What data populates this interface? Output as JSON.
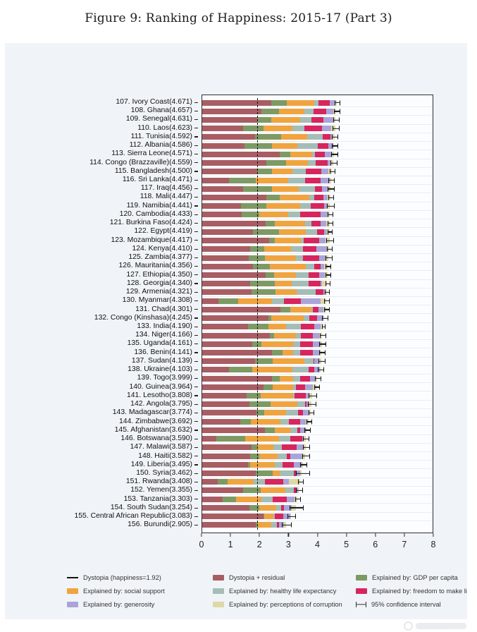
{
  "figure_title": "Figure 9: Ranking of Happiness: 2015-17 (Part 3)",
  "chart_data": {
    "type": "bar",
    "orientation": "horizontal",
    "stacked": true,
    "title": "Figure 9: Ranking of Happiness: 2015-17 (Part 3)",
    "xlabel": "",
    "ylabel": "",
    "xlim": [
      0,
      8
    ],
    "x_ticks": [
      0,
      1,
      2,
      3,
      4,
      5,
      6,
      7,
      8
    ],
    "grid": "faint horizontal row lines",
    "dystopia_line": 1.92,
    "segment_keys": [
      "dystopia_residual",
      "gdp_per_capita",
      "social_support",
      "healthy_life_expectancy",
      "freedom",
      "generosity",
      "corruption"
    ],
    "segment_colors": {
      "dystopia_residual": "#a85d63",
      "gdp_per_capita": "#7e9a64",
      "social_support": "#f0a43f",
      "healthy_life_expectancy": "#a4bdb7",
      "freedom": "#d8255e",
      "generosity": "#a9a5d9",
      "corruption": "#ded8a6"
    },
    "axis_color": "#2f2f2f",
    "countries": [
      {
        "rank": 107,
        "name": "Ivory Coast",
        "score": 4.671,
        "label": "107. Ivory Coast(4.671)",
        "segments": [
          2.39,
          0.55,
          0.95,
          0.15,
          0.38,
          0.17,
          0.081
        ],
        "ci": 0.08
      },
      {
        "rank": 108,
        "name": "Ghana",
        "score": 4.657,
        "label": "108. Ghana(4.657)",
        "segments": [
          2.06,
          0.6,
          0.9,
          0.3,
          0.45,
          0.25,
          0.097
        ],
        "ci": 0.09
      },
      {
        "rank": 109,
        "name": "Senegal",
        "score": 4.631,
        "label": "109. Senegal(4.631)",
        "segments": [
          1.92,
          0.48,
          1.0,
          0.4,
          0.42,
          0.32,
          0.091
        ],
        "ci": 0.08
      },
      {
        "rank": 110,
        "name": "Laos",
        "score": 4.623,
        "label": "110. Laos(4.623)",
        "segments": [
          1.41,
          0.72,
          1.0,
          0.41,
          0.62,
          0.32,
          0.143
        ],
        "ci": 0.09
      },
      {
        "rank": 111,
        "name": "Tunisia",
        "score": 4.592,
        "label": "111. Tunisia(4.592)",
        "segments": [
          1.83,
          0.9,
          0.91,
          0.55,
          0.26,
          0.06,
          0.082
        ],
        "ci": 0.08
      },
      {
        "rank": 112,
        "name": "Albania",
        "score": 4.586,
        "label": "112. Albania(4.586)",
        "segments": [
          1.48,
          0.95,
          0.88,
          0.7,
          0.38,
          0.17,
          0.026
        ],
        "ci": 0.08
      },
      {
        "rank": 113,
        "name": "Sierra Leone",
        "score": 4.571,
        "label": "113. Sierra Leone(4.571)",
        "segments": [
          2.68,
          0.37,
          0.76,
          0.1,
          0.35,
          0.24,
          0.071
        ],
        "ci": 0.09
      },
      {
        "rank": 114,
        "name": "Congo (Brazzaville)",
        "score": 4.559,
        "label": "114. Congo (Brazzaville)(4.559)",
        "segments": [
          2.22,
          0.68,
          0.77,
          0.26,
          0.43,
          0.12,
          0.079
        ],
        "ci": 0.1
      },
      {
        "rank": 115,
        "name": "Bangladesh",
        "score": 4.5,
        "label": "115. Bangladesh(4.500)",
        "segments": [
          1.9,
          0.53,
          0.71,
          0.46,
          0.54,
          0.24,
          0.12
        ],
        "ci": 0.08
      },
      {
        "rank": 116,
        "name": "Sri Lanka",
        "score": 4.471,
        "label": "116. Sri Lanka(4.471)",
        "segments": [
          0.94,
          0.92,
          1.12,
          0.6,
          0.53,
          0.31,
          0.051
        ],
        "ci": 0.08
      },
      {
        "rank": 117,
        "name": "Iraq",
        "score": 4.456,
        "label": "117. Iraq(4.456)",
        "segments": [
          1.42,
          1.01,
          0.92,
          0.57,
          0.24,
          0.2,
          0.096
        ],
        "ci": 0.1
      },
      {
        "rank": 118,
        "name": "Mali",
        "score": 4.447,
        "label": "118. Mali(4.447)",
        "segments": [
          2.23,
          0.45,
          1.04,
          0.16,
          0.33,
          0.15,
          0.087
        ],
        "ci": 0.08
      },
      {
        "rank": 119,
        "name": "Namibia",
        "score": 4.441,
        "label": "119. Namibia(4.441)",
        "segments": [
          1.35,
          0.87,
          1.19,
          0.35,
          0.48,
          0.1,
          0.101
        ],
        "ci": 0.1
      },
      {
        "rank": 120,
        "name": "Cambodia",
        "score": 4.433,
        "label": "120. Cambodia(4.433)",
        "segments": [
          1.37,
          0.6,
          1.01,
          0.42,
          0.7,
          0.26,
          0.073
        ],
        "ci": 0.08
      },
      {
        "rank": 121,
        "name": "Burkina Faso",
        "score": 4.424,
        "label": "121. Burkina Faso(4.424)",
        "segments": [
          2.2,
          0.31,
          1.06,
          0.22,
          0.33,
          0.18,
          0.124
        ],
        "ci": 0.08
      },
      {
        "rank": 122,
        "name": "Egypt",
        "score": 4.419,
        "label": "122. Egypt(4.419)",
        "segments": [
          1.76,
          0.9,
          0.94,
          0.4,
          0.24,
          0.09,
          0.089
        ],
        "ci": 0.07
      },
      {
        "rank": 123,
        "name": "Mozambique",
        "score": 4.417,
        "label": "123. Mozambique(4.417)",
        "segments": [
          2.33,
          0.2,
          0.9,
          0.1,
          0.53,
          0.22,
          0.137
        ],
        "ci": 0.11
      },
      {
        "rank": 124,
        "name": "Kenya",
        "score": 4.41,
        "label": "124. Kenya(4.410)",
        "segments": [
          1.67,
          0.49,
          0.92,
          0.42,
          0.47,
          0.37,
          0.07
        ],
        "ci": 0.07
      },
      {
        "rank": 125,
        "name": "Zambia",
        "score": 4.377,
        "label": "125. Zambia(4.377)",
        "segments": [
          1.62,
          0.56,
          1.07,
          0.26,
          0.54,
          0.23,
          0.097
        ],
        "ci": 0.1
      },
      {
        "rank": 126,
        "name": "Mauritania",
        "score": 4.356,
        "label": "126. Mauritania(4.356)",
        "segments": [
          1.77,
          0.57,
          1.25,
          0.29,
          0.23,
          0.13,
          0.116
        ],
        "ci": 0.08
      },
      {
        "rank": 127,
        "name": "Ethiopia",
        "score": 4.35,
        "label": "127. Ethiopia(4.350)",
        "segments": [
          2.19,
          0.31,
          0.75,
          0.44,
          0.36,
          0.2,
          0.1
        ],
        "ci": 0.08
      },
      {
        "rank": 128,
        "name": "Georgia",
        "score": 4.34,
        "label": "128. Georgia(4.340)",
        "segments": [
          1.66,
          0.85,
          0.59,
          0.6,
          0.42,
          0.04,
          0.18
        ],
        "ci": 0.07
      },
      {
        "rank": 129,
        "name": "Armenia",
        "score": 4.321,
        "label": "129. Armenia(4.321)",
        "segments": [
          1.72,
          0.82,
          0.75,
          0.66,
          0.26,
          0.08,
          0.031
        ],
        "ci": 0.07
      },
      {
        "rank": 130,
        "name": "Myanmar",
        "score": 4.308,
        "label": "130. Myanmar(4.308)",
        "segments": [
          0.57,
          0.68,
          1.17,
          0.43,
          0.58,
          0.69,
          0.188
        ],
        "ci": 0.07
      },
      {
        "rank": 131,
        "name": "Chad",
        "score": 4.301,
        "label": "131. Chad(4.301)",
        "segments": [
          2.71,
          0.36,
          0.73,
          0.05,
          0.19,
          0.18,
          0.081
        ],
        "ci": 0.08
      },
      {
        "rank": 132,
        "name": "Congo (Kinshasa)",
        "score": 4.245,
        "label": "132. Congo (Kinshasa)(4.245)",
        "segments": [
          2.3,
          0.09,
          1.13,
          0.19,
          0.27,
          0.22,
          0.045
        ],
        "ci": 0.09
      },
      {
        "rank": 133,
        "name": "India",
        "score": 4.19,
        "label": "133. India(4.190)",
        "segments": [
          1.59,
          0.72,
          0.6,
          0.51,
          0.46,
          0.22,
          0.09
        ],
        "ci": 0.04
      },
      {
        "rank": 134,
        "name": "Niger",
        "score": 4.166,
        "label": "134. Niger(4.166)",
        "segments": [
          2.35,
          0.14,
          0.77,
          0.16,
          0.43,
          0.2,
          0.116
        ],
        "ci": 0.08
      },
      {
        "rank": 135,
        "name": "Uganda",
        "score": 4.161,
        "label": "135. Uganda(4.161)",
        "segments": [
          1.74,
          0.32,
          1.09,
          0.24,
          0.45,
          0.26,
          0.061
        ],
        "ci": 0.09
      },
      {
        "rank": 136,
        "name": "Benin",
        "score": 4.141,
        "label": "136. Benin(4.141)",
        "segments": [
          2.41,
          0.38,
          0.37,
          0.25,
          0.44,
          0.21,
          0.081
        ],
        "ci": 0.08
      },
      {
        "rank": 137,
        "name": "Sudan",
        "score": 4.139,
        "label": "137. Sudan(4.139)",
        "segments": [
          1.84,
          0.61,
          1.1,
          0.31,
          0.04,
          0.15,
          0.089
        ],
        "ci": 0.1
      },
      {
        "rank": 138,
        "name": "Ukraine",
        "score": 4.103,
        "label": "138. Ukraine(4.103)",
        "segments": [
          0.94,
          0.79,
          1.41,
          0.56,
          0.18,
          0.21,
          0.013
        ],
        "ci": 0.08
      },
      {
        "rank": 139,
        "name": "Togo",
        "score": 3.999,
        "label": "139. Togo(3.999)",
        "segments": [
          2.42,
          0.26,
          0.47,
          0.25,
          0.34,
          0.17,
          0.089
        ],
        "ci": 0.08
      },
      {
        "rank": 140,
        "name": "Guinea",
        "score": 3.964,
        "label": "140. Guinea(3.964)",
        "segments": [
          2.13,
          0.31,
          0.72,
          0.1,
          0.31,
          0.28,
          0.114
        ],
        "ci": 0.08
      },
      {
        "rank": 141,
        "name": "Lesotho",
        "score": 3.808,
        "label": "141. Lesotho(3.808)",
        "segments": [
          1.55,
          0.47,
          1.13,
          0.05,
          0.39,
          0.12,
          0.098
        ],
        "ci": 0.12
      },
      {
        "rank": 142,
        "name": "Angola",
        "score": 3.795,
        "label": "142. Angola(3.795)",
        "segments": [
          1.65,
          0.73,
          0.92,
          0.27,
          0.06,
          0.1,
          0.065
        ],
        "ci": 0.12
      },
      {
        "rank": 143,
        "name": "Madagascar",
        "score": 3.774,
        "label": "143. Madagascar(3.774)",
        "segments": [
          1.89,
          0.26,
          0.77,
          0.4,
          0.19,
          0.19,
          0.074
        ],
        "ci": 0.07
      },
      {
        "rank": 144,
        "name": "Zimbabwe",
        "score": 3.692,
        "label": "144. Zimbabwe(3.692)",
        "segments": [
          1.32,
          0.36,
          1.04,
          0.28,
          0.41,
          0.19,
          0.092
        ],
        "ci": 0.08
      },
      {
        "rank": 145,
        "name": "Afghanistan",
        "score": 3.632,
        "label": "145. Afghanistan(3.632)",
        "segments": [
          2.18,
          0.33,
          0.54,
          0.26,
          0.09,
          0.19,
          0.042
        ],
        "ci": 0.08
      },
      {
        "rank": 146,
        "name": "Botswana",
        "score": 3.59,
        "label": "146. Botswana(3.590)",
        "segments": [
          0.5,
          1.0,
          1.16,
          0.4,
          0.41,
          0.04,
          0.08
        ],
        "ci": 0.08
      },
      {
        "rank": 147,
        "name": "Malawi",
        "score": 3.587,
        "label": "147. Malawi(3.587)",
        "segments": [
          1.71,
          0.19,
          0.56,
          0.3,
          0.53,
          0.22,
          0.077
        ],
        "ci": 0.1
      },
      {
        "rank": 148,
        "name": "Haiti",
        "score": 3.582,
        "label": "148. Haiti(3.582)",
        "segments": [
          1.66,
          0.32,
          0.64,
          0.31,
          0.12,
          0.42,
          0.112
        ],
        "ci": 0.12
      },
      {
        "rank": 149,
        "name": "Liberia",
        "score": 3.495,
        "label": "149. Liberia(3.495)",
        "segments": [
          1.59,
          0.08,
          0.86,
          0.27,
          0.37,
          0.28,
          0.045
        ],
        "ci": 0.1
      },
      {
        "rank": 150,
        "name": "Syria",
        "score": 3.462,
        "label": "150. Syria(3.462)",
        "segments": [
          1.85,
          0.59,
          0.25,
          0.5,
          0.06,
          0.15,
          0.062
        ],
        "ci": 0.22
      },
      {
        "rank": 151,
        "name": "Rwanda",
        "score": 3.408,
        "label": "151. Rwanda(3.408)",
        "segments": [
          0.55,
          0.33,
          0.9,
          0.4,
          0.64,
          0.2,
          0.388
        ],
        "ci": 0.07
      },
      {
        "rank": 152,
        "name": "Yemen",
        "score": 3.355,
        "label": "152. Yemen(3.355)",
        "segments": [
          1.43,
          0.59,
          0.86,
          0.31,
          0.1,
          0.05,
          0.015
        ],
        "ci": 0.1
      },
      {
        "rank": 153,
        "name": "Tanzania",
        "score": 3.303,
        "label": "153. Tanzania(3.303)",
        "segments": [
          0.72,
          0.45,
          0.88,
          0.4,
          0.48,
          0.27,
          0.103
        ],
        "ci": 0.08
      },
      {
        "rank": 154,
        "name": "South Sudan",
        "score": 3.254,
        "label": "154. South Sudan(3.254)",
        "segments": [
          1.63,
          0.34,
          0.6,
          0.18,
          0.1,
          0.26,
          0.144
        ],
        "ci": 0.22
      },
      {
        "rank": 155,
        "name": "Central African Republic",
        "score": 3.083,
        "label": "155. Central African Republic(3.083)",
        "segments": [
          2.14,
          0.02,
          0.32,
          0.05,
          0.29,
          0.23,
          0.033
        ],
        "ci": 0.12
      },
      {
        "rank": 156,
        "name": "Burundi",
        "score": 2.905,
        "label": "156. Burundi(2.905)",
        "segments": [
          1.85,
          0.09,
          0.45,
          0.21,
          0.06,
          0.18,
          0.065
        ],
        "ci": 0.15
      }
    ],
    "legend": [
      {
        "label": "Dystopia (happiness=1.92)",
        "type": "line",
        "color": "#111111"
      },
      {
        "label": "Explained by: social support",
        "type": "box",
        "color": "#f0a43f"
      },
      {
        "label": "Explained by: generosity",
        "type": "box",
        "color": "#a9a5d9"
      },
      {
        "label": "Dystopia + residual",
        "type": "box",
        "color": "#a85d63"
      },
      {
        "label": "Explained by: healthy life expectancy",
        "type": "box",
        "color": "#a4bdb7"
      },
      {
        "label": "Explained by: perceptions of corruption",
        "type": "box",
        "color": "#ded8a6"
      },
      {
        "label": "Explained by: GDP per capita",
        "type": "box",
        "color": "#7e9a64"
      },
      {
        "label": "Explained by: freedom to make life choices",
        "type": "box",
        "color": "#d8255e"
      },
      {
        "label": "95% confidence interval",
        "type": "errorbar",
        "color": "#333333"
      }
    ],
    "legend_position": "bottom"
  }
}
